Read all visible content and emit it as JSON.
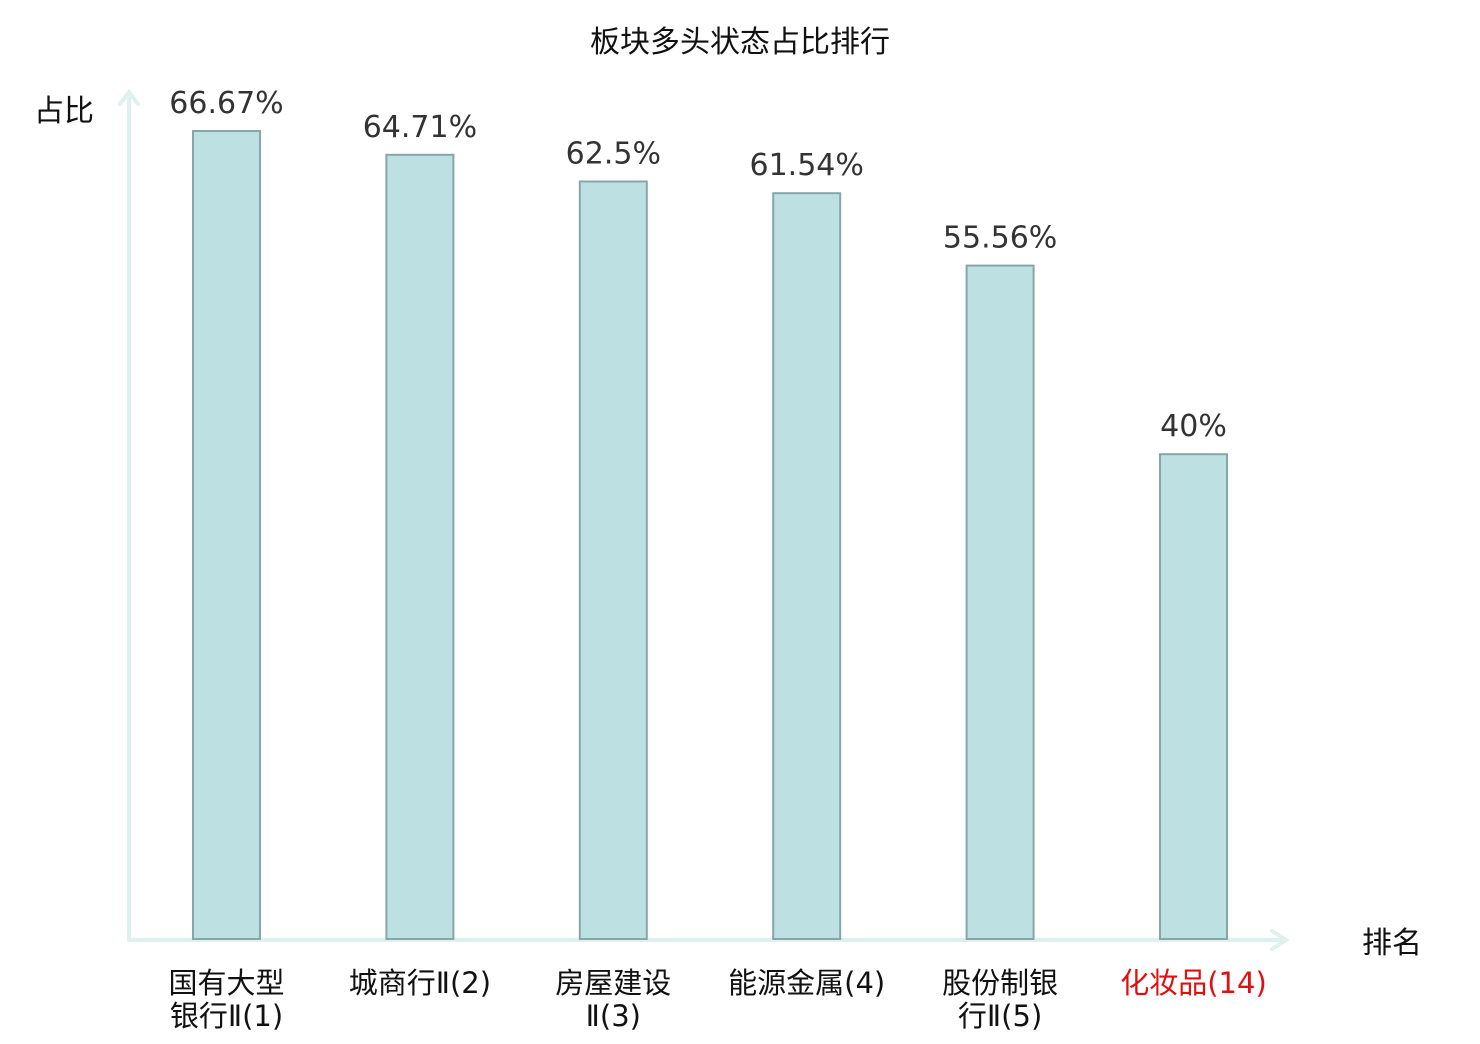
{
  "chart_data": {
    "type": "bar",
    "title": "板块多头状态占比排行",
    "ylabel": "占比",
    "xlabel": "排名",
    "categories": [
      {
        "lines": [
          "国有大型",
          "银行Ⅱ(1)"
        ],
        "highlight": false
      },
      {
        "lines": [
          "城商行Ⅱ(2)"
        ],
        "highlight": false
      },
      {
        "lines": [
          "房屋建设",
          "Ⅱ(3)"
        ],
        "highlight": false
      },
      {
        "lines": [
          "能源金属(4)"
        ],
        "highlight": false
      },
      {
        "lines": [
          "股份制银",
          "行Ⅱ(5)"
        ],
        "highlight": false
      },
      {
        "lines": [
          "化妆品(14)"
        ],
        "highlight": true
      }
    ],
    "values": [
      66.67,
      64.71,
      62.5,
      61.54,
      55.56,
      40
    ],
    "value_labels": [
      "66.67%",
      "64.71%",
      "62.5%",
      "61.54%",
      "55.56%",
      "40%"
    ],
    "ylim": [
      0,
      70
    ],
    "grid": false,
    "legend": "none",
    "colors": {
      "bar_fill": "#bde0e3",
      "bar_stroke": "#87a6a8",
      "axis": "#dff1ef",
      "label_text": "#333333",
      "category_text": "#111111",
      "highlight_text": "#e01010"
    }
  }
}
